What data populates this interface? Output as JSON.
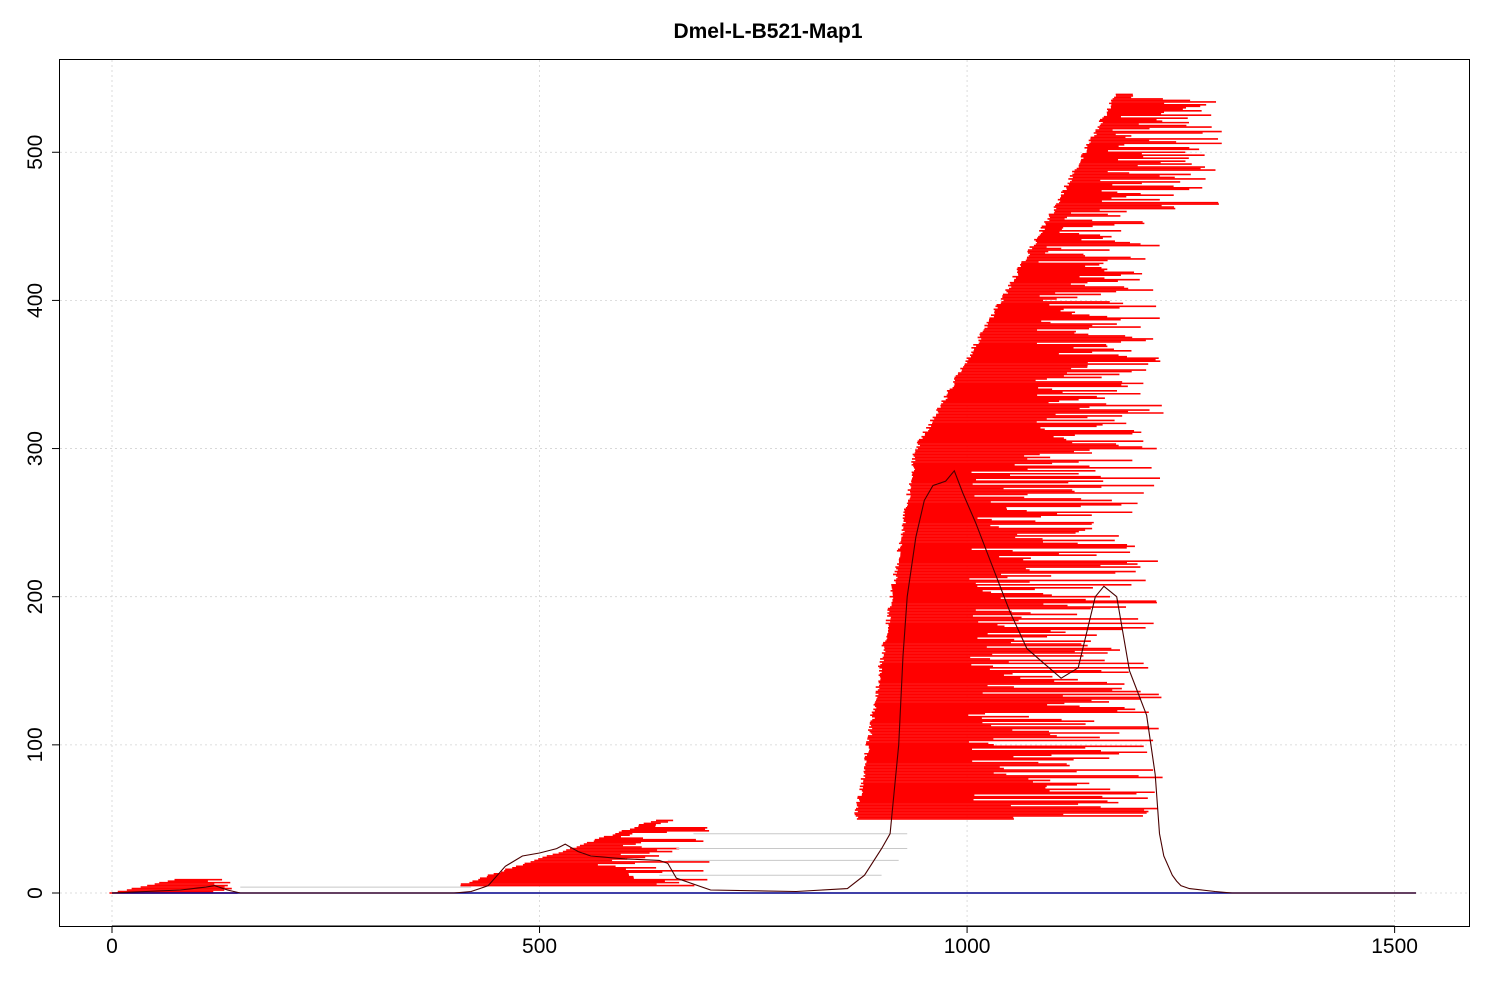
{
  "chart_data": {
    "type": "line",
    "title": "Dmel-L-B521-Map1",
    "xlabel": "",
    "ylabel": "",
    "xlim": [
      0,
      1525
    ],
    "ylim": [
      0,
      540
    ],
    "x_ticks": [
      0,
      500,
      1000,
      1500
    ],
    "y_ticks": [
      0,
      100,
      200,
      300,
      400,
      500
    ],
    "x_tick_labels": [
      "0",
      "500",
      "1000",
      "1500"
    ],
    "y_tick_labels": [
      "0",
      "100",
      "200",
      "300",
      "400",
      "500"
    ],
    "grid": true,
    "colors": {
      "reads": "#ff0000",
      "coverage": "#4a0000",
      "gaps": "#c8c8c8",
      "baseline": "#00008b"
    },
    "series": [
      {
        "role": "coverage",
        "x": [
          0,
          40,
          80,
          110,
          120,
          135,
          150,
          200,
          300,
          400,
          420,
          430,
          440,
          460,
          480,
          500,
          520,
          530,
          545,
          560,
          600,
          640,
          650,
          660,
          700,
          800,
          860,
          880,
          900,
          910,
          920,
          925,
          930,
          940,
          950,
          960,
          975,
          985,
          995,
          1010,
          1030,
          1050,
          1070,
          1090,
          1110,
          1130,
          1150,
          1160,
          1175,
          1190,
          1210,
          1220,
          1225,
          1230,
          1240,
          1245,
          1250,
          1260,
          1290,
          1310,
          1350,
          1525
        ],
        "y": [
          0,
          1,
          2,
          4,
          5,
          2,
          0,
          0,
          0,
          0,
          1,
          3,
          5,
          18,
          25,
          27,
          30,
          33,
          28,
          25,
          23,
          22,
          20,
          10,
          2,
          1,
          3,
          12,
          30,
          40,
          100,
          160,
          200,
          240,
          265,
          275,
          278,
          285,
          270,
          250,
          220,
          190,
          165,
          155,
          145,
          152,
          200,
          207,
          200,
          150,
          120,
          80,
          40,
          25,
          12,
          8,
          5,
          3,
          1,
          0,
          0,
          0
        ]
      }
    ],
    "reads": {
      "bands": [
        {
          "y_from": 0,
          "y_to": 10,
          "x_start_from": 0,
          "x_start_to": 80,
          "x_end_min": 110,
          "x_end_max": 150
        },
        {
          "y_from": 5,
          "y_to": 50,
          "x_start_from": 405,
          "x_start_to": 640,
          "x_end_min": 560,
          "x_end_max": 710
        },
        {
          "y_from": 50,
          "y_to": 300,
          "x_start_from": 870,
          "x_start_to": 940,
          "x_end_min": 1000,
          "x_end_max": 1230
        },
        {
          "y_from": 300,
          "y_to": 460,
          "x_start_from": 940,
          "x_start_to": 1100,
          "x_end_min": 1080,
          "x_end_max": 1230
        },
        {
          "y_from": 460,
          "y_to": 540,
          "x_start_from": 1100,
          "x_start_to": 1175,
          "x_end_min": 1150,
          "x_end_max": 1300
        }
      ],
      "gap_links": [
        {
          "x1": 150,
          "x2": 420,
          "y": 4
        },
        {
          "x1": 640,
          "x2": 900,
          "y": 12
        },
        {
          "x1": 650,
          "x2": 920,
          "y": 22
        },
        {
          "x1": 660,
          "x2": 930,
          "y": 30
        },
        {
          "x1": 680,
          "x2": 930,
          "y": 40
        }
      ]
    }
  }
}
